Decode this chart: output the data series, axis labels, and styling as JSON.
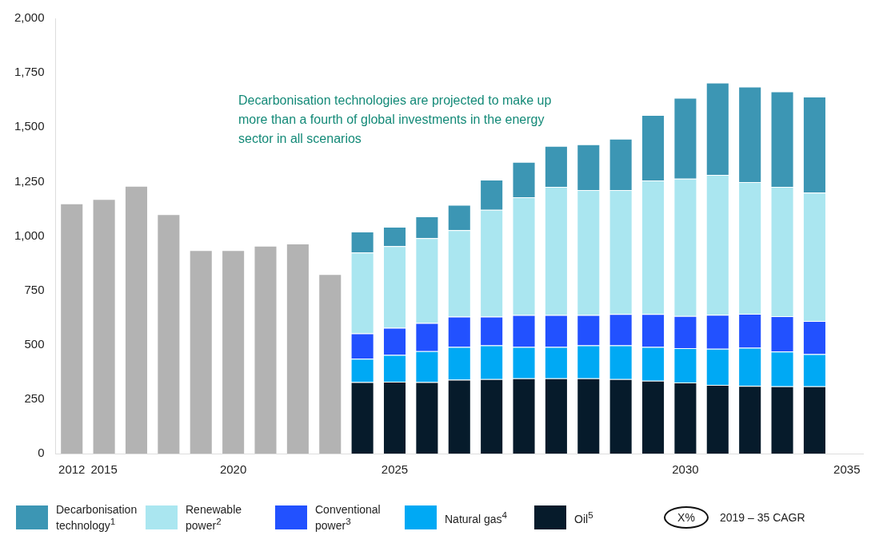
{
  "chart_data": {
    "type": "bar",
    "stacked": true,
    "categories": [
      "2012",
      "2015",
      null,
      null,
      null,
      "2020",
      null,
      null,
      null,
      null,
      "2025",
      null,
      null,
      null,
      null,
      null,
      null,
      null,
      null,
      "2030",
      null,
      null,
      null,
      null,
      "2035"
    ],
    "series": [
      {
        "color": "#b3b3b3",
        "values": [
          1150,
          1170,
          1230,
          1100,
          935,
          935,
          955,
          965,
          825,
          null,
          null,
          null,
          null,
          null,
          null,
          null,
          null,
          null,
          null,
          null,
          null,
          null,
          null,
          null,
          null
        ]
      },
      {
        "name": "Oil$^{5}$",
        "color": "#061b2b",
        "values": [
          null,
          null,
          null,
          null,
          null,
          null,
          null,
          null,
          null,
          328,
          330,
          328,
          339,
          342,
          346,
          346,
          346,
          342,
          335,
          327,
          316,
          311,
          309,
          309,
          null
        ]
      },
      {
        "name": "Natural gas$^{4}$",
        "color": "#00a9f4",
        "values": [
          null,
          null,
          null,
          null,
          null,
          null,
          null,
          null,
          null,
          108,
          123,
          143,
          151,
          155,
          144,
          144,
          151,
          155,
          155,
          157,
          166,
          175,
          160,
          148,
          null
        ]
      },
      {
        "name": "Conventional power$^{3}$",
        "color": "#2251ff",
        "values": [
          null,
          null,
          null,
          null,
          null,
          null,
          null,
          null,
          null,
          116,
          125,
          129,
          139,
          132,
          147,
          147,
          140,
          144,
          151,
          148,
          156,
          156,
          162,
          152,
          null
        ]
      },
      {
        "name": "Renewable power$^{2}$",
        "color": "#aae6f0",
        "values": [
          null,
          null,
          null,
          null,
          null,
          null,
          null,
          null,
          null,
          372,
          375,
          390,
          398,
          491,
          541,
          589,
          574,
          570,
          614,
          631,
          643,
          606,
          595,
          590,
          null
        ]
      },
      {
        "name": "Decarbonisation technology$^{1}$",
        "color": "#3c96b4",
        "values": [
          null,
          null,
          null,
          null,
          null,
          null,
          null,
          null,
          null,
          96,
          89,
          100,
          116,
          139,
          162,
          188,
          210,
          236,
          301,
          372,
          424,
          438,
          438,
          441,
          null
        ]
      }
    ],
    "ylim": [
      0,
      2000
    ],
    "yticks": [
      0,
      250,
      500,
      750,
      {
        "value": 1000,
        "label": "1,000"
      },
      {
        "value": 1250,
        "label": "1,250"
      },
      {
        "value": 1500,
        "label": "1,500"
      },
      {
        "value": 1750,
        "label": "1,750"
      },
      {
        "value": 2000,
        "label": "2,000"
      }
    ],
    "grid": false,
    "legend": "bottom",
    "annotations": [
      "Decarbonisation technologies are projected to make up more than a fourth of global investments in the energy sector in all scenarios",
      "X%",
      "2019 – 35 CAGR"
    ]
  }
}
